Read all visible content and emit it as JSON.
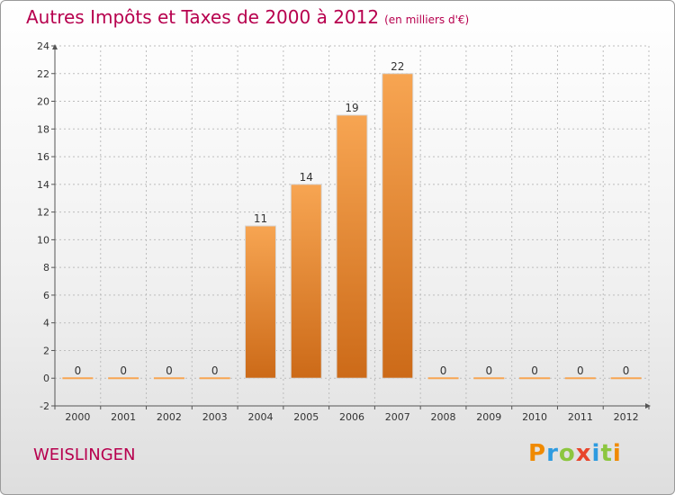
{
  "header": {
    "title": "Autres Impôts et Taxes de 2000 à 2012",
    "subtitle": "(en milliers d'€)"
  },
  "footer": {
    "commune": "WEISLINGEN",
    "logo_text": "Proxiti"
  },
  "colors": {
    "title": "#b7004e",
    "bar_top": "#f7a552",
    "bar_bottom": "#cc6a18",
    "axis": "#555555",
    "grid": "#bdbdbd"
  },
  "chart_data": {
    "type": "bar",
    "title": "Autres Impôts et Taxes de 2000 à 2012",
    "subtitle": "(en milliers d'€)",
    "categories": [
      "2000",
      "2001",
      "2002",
      "2003",
      "2004",
      "2005",
      "2006",
      "2007",
      "2008",
      "2009",
      "2010",
      "2011",
      "2012"
    ],
    "values": [
      0,
      0,
      0,
      0,
      11,
      14,
      19,
      22,
      0,
      0,
      0,
      0,
      0
    ],
    "ylim": [
      -2,
      24
    ],
    "yticks": [
      -2,
      0,
      2,
      4,
      6,
      8,
      10,
      12,
      14,
      16,
      18,
      20,
      22,
      24
    ],
    "grid": true,
    "legend": "none"
  }
}
